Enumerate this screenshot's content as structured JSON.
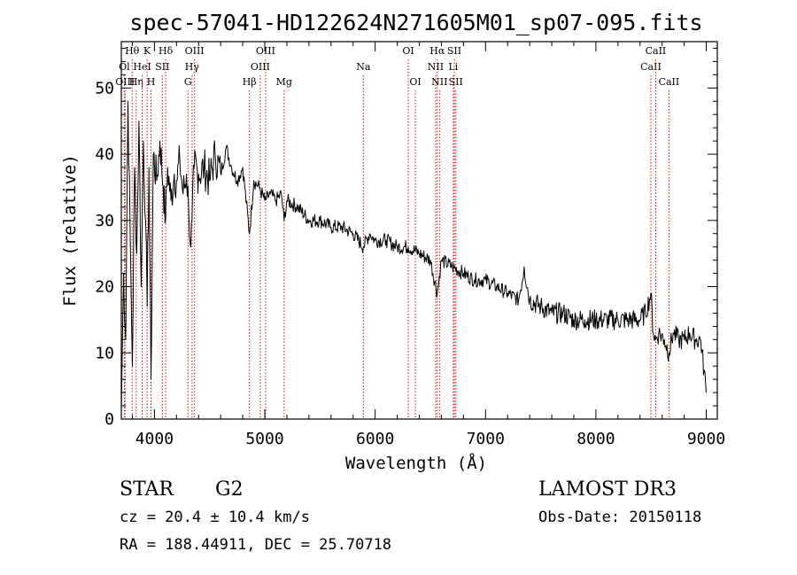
{
  "chart_data": {
    "type": "line",
    "title": "spec-57041-HD122624N271605M01_sp07-095.fits",
    "xlabel": "Wavelength (Å)",
    "ylabel": "Flux (relative)",
    "xlim": [
      3700,
      9100
    ],
    "ylim": [
      0,
      57
    ],
    "xticks": [
      4000,
      5000,
      6000,
      7000,
      8000,
      9000
    ],
    "yticks": [
      0,
      10,
      20,
      30,
      40,
      50
    ],
    "line_color": "#000000",
    "marker_color": "#cc0000",
    "series": [
      {
        "name": "flux",
        "x": [
          3700,
          3720,
          3740,
          3760,
          3780,
          3800,
          3820,
          3840,
          3860,
          3880,
          3900,
          3920,
          3934,
          3950,
          3969,
          3990,
          4020,
          4050,
          4080,
          4101,
          4120,
          4150,
          4180,
          4200,
          4230,
          4260,
          4290,
          4310,
          4330,
          4340,
          4360,
          4400,
          4450,
          4500,
          4550,
          4600,
          4650,
          4700,
          4750,
          4800,
          4861,
          4900,
          4950,
          5000,
          5050,
          5100,
          5150,
          5175,
          5200,
          5300,
          5400,
          5500,
          5600,
          5700,
          5800,
          5893,
          5950,
          6000,
          6100,
          6200,
          6300,
          6400,
          6500,
          6563,
          6600,
          6700,
          6800,
          6900,
          7000,
          7100,
          7200,
          7300,
          7350,
          7400,
          7500,
          7600,
          7700,
          7800,
          7900,
          8000,
          8100,
          8200,
          8300,
          8400,
          8450,
          8498,
          8520,
          8542,
          8570,
          8620,
          8662,
          8700,
          8750,
          8800,
          8850,
          8900,
          8950,
          9000
        ],
        "y": [
          1,
          22,
          12,
          48,
          28,
          8,
          38,
          25,
          45,
          20,
          42,
          30,
          17,
          38,
          6,
          40,
          36,
          42,
          35,
          30,
          38,
          33,
          37,
          36,
          39,
          34,
          37,
          32,
          26,
          30,
          38,
          37,
          38,
          36,
          40,
          37,
          41,
          38,
          36,
          38,
          28,
          36,
          35,
          33,
          34,
          33,
          34,
          30,
          33,
          32,
          30,
          30,
          29,
          29,
          28,
          26,
          28,
          27,
          27,
          26,
          26,
          25,
          24,
          19,
          24,
          23,
          22,
          21,
          21,
          20,
          19,
          18,
          23,
          18,
          17,
          16,
          16,
          15,
          15,
          15,
          15,
          15,
          15,
          15,
          16,
          19,
          13,
          12,
          13,
          12,
          10,
          13,
          12,
          12,
          13,
          12,
          12,
          4
        ]
      }
    ],
    "lines": [
      {
        "label": "Ol",
        "wl": 3727,
        "row": 2
      },
      {
        "label": "OIII",
        "wl": 3734,
        "row": 3
      },
      {
        "label": "Hθ",
        "wl": 3798,
        "row": 1
      },
      {
        "label": "Hη",
        "wl": 3835,
        "row": 3
      },
      {
        "label": "HeI",
        "wl": 3889,
        "row": 2
      },
      {
        "label": "K",
        "wl": 3934,
        "row": 1
      },
      {
        "label": "H",
        "wl": 3969,
        "row": 3
      },
      {
        "label": "SII",
        "wl": 4072,
        "row": 2
      },
      {
        "label": "Hδ",
        "wl": 4102,
        "row": 1
      },
      {
        "label": "OIII",
        "wl": 4363,
        "row": 1
      },
      {
        "label": "Hγ",
        "wl": 4341,
        "row": 2
      },
      {
        "label": "G",
        "wl": 4304,
        "row": 3
      },
      {
        "label": "Hβ",
        "wl": 4861,
        "row": 3
      },
      {
        "label": "OIII",
        "wl": 4959,
        "row": 2
      },
      {
        "label": "OIII",
        "wl": 5007,
        "row": 1
      },
      {
        "label": "Mg",
        "wl": 5175,
        "row": 3
      },
      {
        "label": "Na",
        "wl": 5893,
        "row": 2
      },
      {
        "label": "OI",
        "wl": 6300,
        "row": 1
      },
      {
        "label": "OI",
        "wl": 6364,
        "row": 3
      },
      {
        "label": "NII",
        "wl": 6548,
        "row": 2
      },
      {
        "label": "Hα",
        "wl": 6563,
        "row": 1
      },
      {
        "label": "NII",
        "wl": 6583,
        "row": 3
      },
      {
        "label": "Li",
        "wl": 6708,
        "row": 2
      },
      {
        "label": "SII",
        "wl": 6717,
        "row": 1
      },
      {
        "label": "SII",
        "wl": 6731,
        "row": 3
      },
      {
        "label": "CaII",
        "wl": 8498,
        "row": 2
      },
      {
        "label": "CaII",
        "wl": 8542,
        "row": 1
      },
      {
        "label": "CaII",
        "wl": 8662,
        "row": 3
      }
    ]
  },
  "info": {
    "class_label": "STAR",
    "subclass": "G2",
    "survey": "LAMOST DR3",
    "cz": "cz = 20.4 ± 10.4 km/s",
    "obs_date": "Obs-Date: 20150118",
    "coords": "RA = 188.44911, DEC =  25.70718"
  }
}
